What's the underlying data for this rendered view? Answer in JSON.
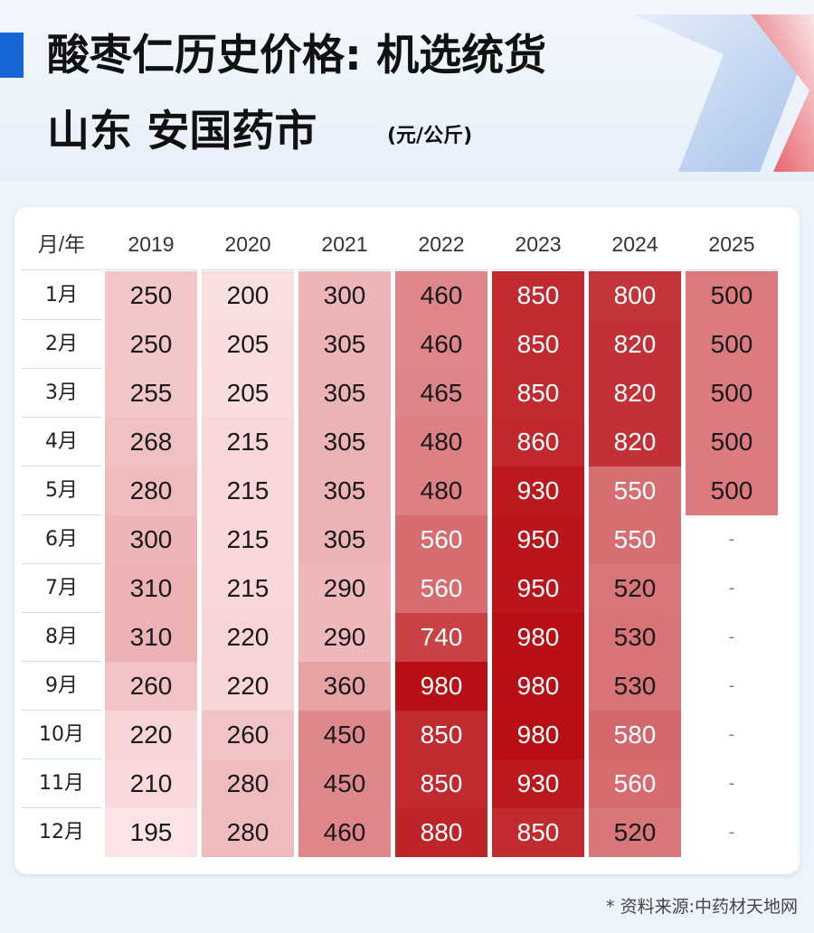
{
  "title": {
    "line1": "酸枣仁历史价格: 机选统货",
    "line2": "山东 安国药市",
    "unit": "(元/公斤)"
  },
  "source": "* 资料来源:中药材天地网",
  "colors": {
    "accent": "#1565d8",
    "low": "#fce4e6",
    "high": "#b80f14"
  },
  "chart_data": {
    "type": "heatmap",
    "corner_label": "月/年",
    "columns": [
      "2019",
      "2020",
      "2021",
      "2022",
      "2023",
      "2024",
      "2025"
    ],
    "rows": [
      "1月",
      "2月",
      "3月",
      "4月",
      "5月",
      "6月",
      "7月",
      "8月",
      "9月",
      "10月",
      "11月",
      "12月"
    ],
    "values": [
      [
        250,
        200,
        300,
        460,
        850,
        800,
        500
      ],
      [
        250,
        205,
        305,
        460,
        850,
        820,
        500
      ],
      [
        255,
        205,
        305,
        465,
        850,
        820,
        500
      ],
      [
        268,
        215,
        305,
        480,
        860,
        820,
        500
      ],
      [
        280,
        215,
        305,
        480,
        930,
        550,
        500
      ],
      [
        300,
        215,
        305,
        560,
        950,
        550,
        null
      ],
      [
        310,
        215,
        290,
        560,
        950,
        520,
        null
      ],
      [
        310,
        220,
        290,
        740,
        980,
        530,
        null
      ],
      [
        260,
        220,
        360,
        980,
        980,
        530,
        null
      ],
      [
        220,
        260,
        450,
        850,
        980,
        580,
        null
      ],
      [
        210,
        280,
        450,
        850,
        930,
        560,
        null
      ],
      [
        195,
        280,
        460,
        880,
        850,
        520,
        null
      ]
    ],
    "missing_label": "-"
  }
}
